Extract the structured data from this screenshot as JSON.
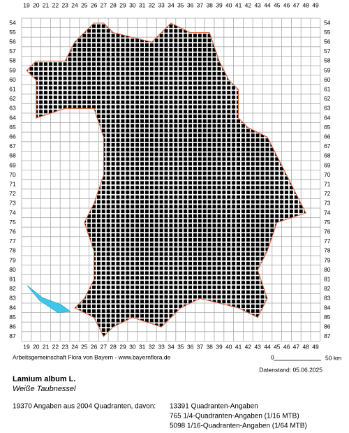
{
  "grid": {
    "columns": [
      19,
      20,
      21,
      22,
      23,
      24,
      25,
      26,
      27,
      28,
      29,
      30,
      31,
      32,
      33,
      34,
      35,
      36,
      37,
      38,
      39,
      40,
      41,
      42,
      43,
      44,
      45,
      46,
      47,
      48,
      49
    ],
    "rows": [
      54,
      55,
      56,
      57,
      58,
      59,
      60,
      61,
      62,
      63,
      64,
      65,
      66,
      67,
      68,
      69,
      70,
      71,
      72,
      73,
      74,
      75,
      76,
      77,
      78,
      79,
      80,
      81,
      82,
      83,
      84,
      85,
      86,
      87
    ]
  },
  "credit": "Arbeitsgemeinschaft Flora von Bayern - www.bayernflora.de",
  "scale": {
    "start": "0",
    "end": "50 km"
  },
  "date": "Datenstand: 05.06.2025",
  "species": {
    "name": "Lamium album L.",
    "common_name": "Weiße Taubnessel"
  },
  "summary": {
    "total": "19370 Angaben aus 2004 Quadranten, davon:",
    "lines": [
      "13391 Quadranten-Angaben",
      "765 1/4-Quadranten-Angaben (1/16 MTB)",
      "5098 1/16-Quadranten-Angaben (1/64 MTB)"
    ]
  }
}
